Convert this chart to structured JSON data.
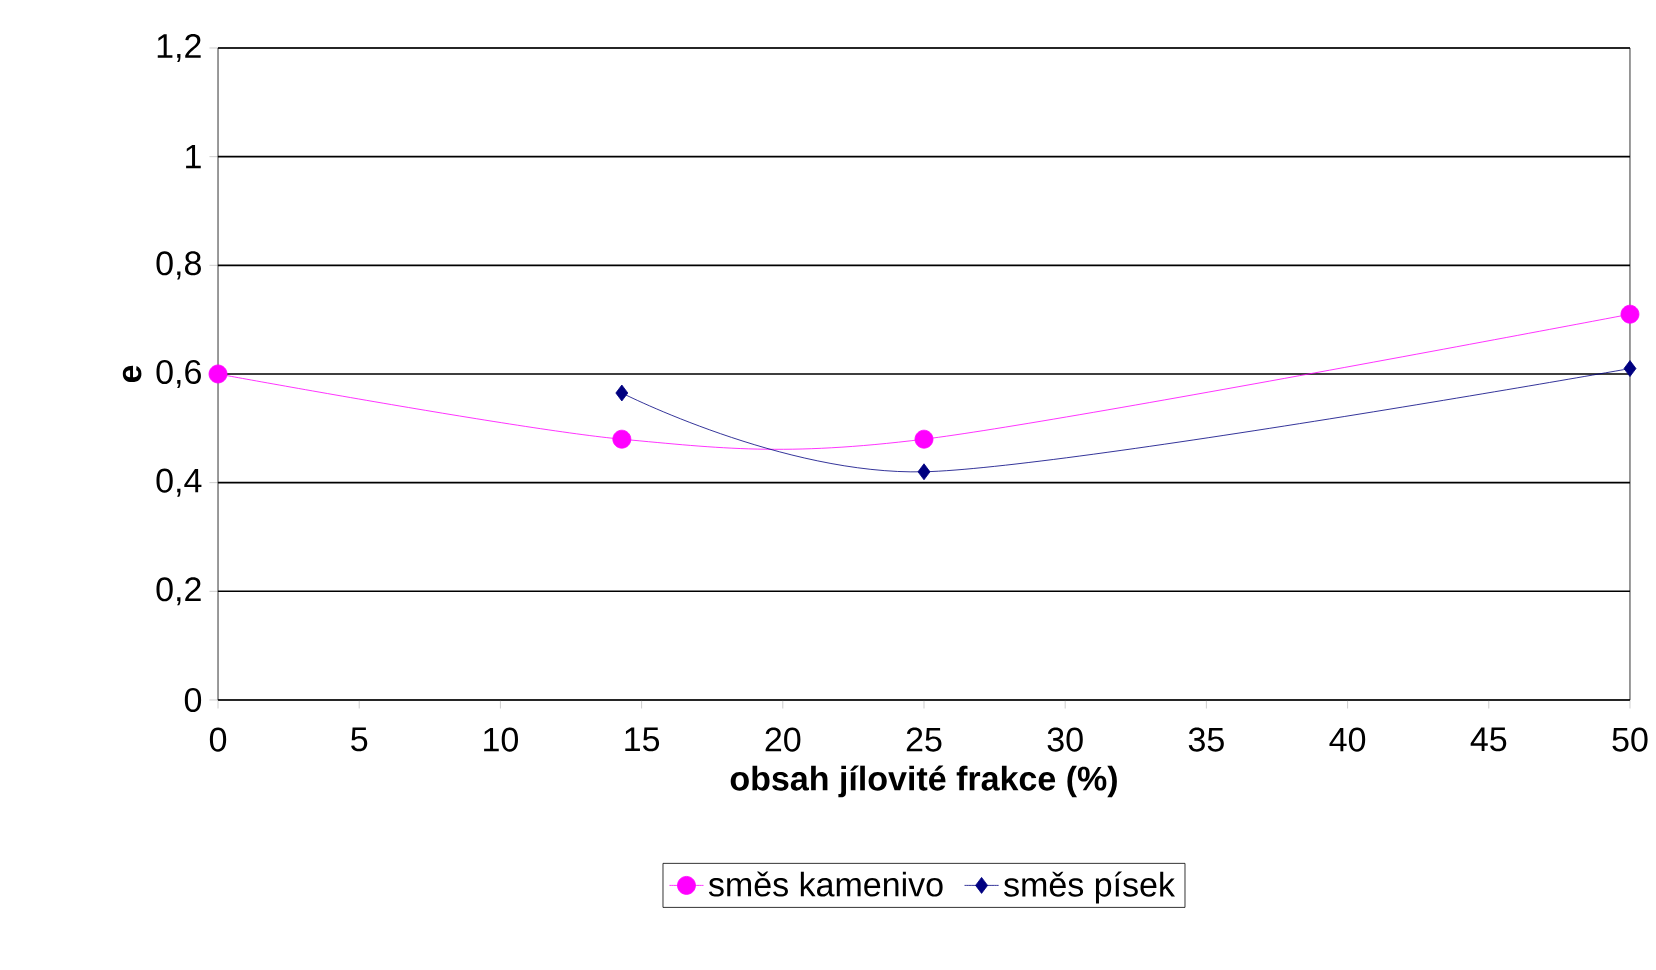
{
  "chart_data": {
    "type": "line",
    "xlabel": "obsah jílovité frakce (%)",
    "ylabel": "e",
    "xlim": [
      0,
      50
    ],
    "xticks": [
      0,
      5,
      10,
      15,
      20,
      25,
      30,
      35,
      40,
      45,
      50
    ],
    "ylim": [
      0,
      1.2
    ],
    "yticks": [
      0,
      {
        "value": 0.2,
        "label": "0,2"
      },
      {
        "value": 0.4,
        "label": "0,4"
      },
      {
        "value": 0.6,
        "label": "0,6"
      },
      {
        "value": 0.8,
        "label": "0,8"
      },
      1,
      {
        "value": 1.2,
        "label": "1,2"
      }
    ],
    "grid": "y",
    "legend": "bottom",
    "series": [
      {
        "name": "směs kamenivo",
        "color": "#ff00ff",
        "marker": "circle",
        "x": [
          0,
          14.3,
          25,
          50
        ],
        "values": [
          0.6,
          0.48,
          0.48,
          0.71
        ]
      },
      {
        "name": "směs písek",
        "color": "#000080",
        "marker": "diamond",
        "x": [
          14.3,
          25,
          50
        ],
        "values": [
          0.565,
          0.42,
          0.61
        ]
      }
    ]
  }
}
